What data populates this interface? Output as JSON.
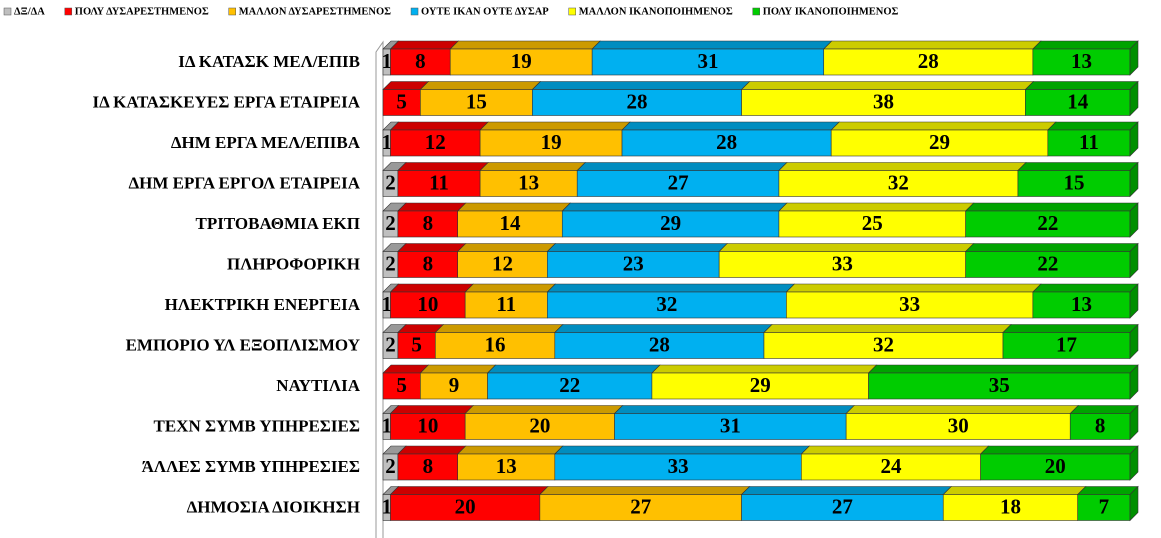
{
  "chart_data": {
    "type": "stacked_barh",
    "categories": [
      "ΙΔ ΚΑΤΑΣΚ ΜΕΛ/ΕΠΙΒ",
      "ΙΔ ΚΑΤΑΣΚΕΥΕΣ ΕΡΓΑ ΕΤΑΙΡΕΙΑ",
      "ΔΗΜ ΕΡΓΑ ΜΕΛ/ΕΠΙΒΑ",
      "ΔΗΜ ΕΡΓΑ ΕΡΓΟΛ ΕΤΑΙΡΕΙΑ",
      "ΤΡΙΤΟΒΑΘΜΙΑ ΕΚΠ",
      "ΠΛΗΡΟΦΟΡΙΚΗ",
      "ΗΛΕΚΤΡΙΚΗ ΕΝΕΡΓΕΙΑ",
      "ΕΜΠΟΡΙΟ ΥΛ ΕΞΟΠΛΙΣΜΟΥ",
      "ΝΑΥΤΙΛΙΑ",
      "ΤΕΧΝ ΣΥΜΒ ΥΠΗΡΕΣΙΕΣ",
      "ΆΛΛΕΣ ΣΥΜΒ ΥΠΗΡΕΣΙΕΣ",
      "ΔΗΜΟΣΙΑ ΔΙΟΙΚΗΣΗ"
    ],
    "series": [
      {
        "name": "ΔΞ/ΔΑ",
        "color": "#bfbfbf",
        "values": [
          1,
          null,
          1,
          2,
          2,
          2,
          1,
          2,
          null,
          1,
          2,
          1
        ]
      },
      {
        "name": "ΠΟΛΥ ΔΥΣΑΡΕΣΤΗΜΕΝΟΣ",
        "color": "#ff0000",
        "values": [
          8,
          5,
          12,
          11,
          8,
          8,
          10,
          5,
          5,
          10,
          8,
          20
        ]
      },
      {
        "name": "ΜΑΛΛΟΝ ΔΥΣΑΡΕΣΤΗΜΕΝΟΣ",
        "color": "#ffc000",
        "values": [
          19,
          15,
          19,
          13,
          14,
          12,
          11,
          16,
          9,
          20,
          13,
          27
        ]
      },
      {
        "name": "ΟΥΤΕ ΙΚΑΝ ΟΥΤΕ ΔΥΣΑΡ",
        "color": "#00b0f0",
        "values": [
          31,
          28,
          28,
          27,
          29,
          23,
          32,
          28,
          22,
          31,
          33,
          27
        ]
      },
      {
        "name": "ΜΑΛΛΟΝ ΙΚΑΝΟΠΟΙΗΜΕΝΟΣ",
        "color": "#ffff00",
        "values": [
          28,
          38,
          29,
          32,
          25,
          33,
          33,
          32,
          29,
          30,
          24,
          18
        ]
      },
      {
        "name": "ΠΟΛΥ ΙΚΑΝΟΠΟΙΗΜΕΝΟΣ",
        "color": "#00cc00",
        "values": [
          13,
          14,
          11,
          15,
          22,
          22,
          13,
          17,
          35,
          8,
          20,
          7
        ]
      }
    ],
    "xlim": [
      0,
      100
    ],
    "legend": "top"
  }
}
